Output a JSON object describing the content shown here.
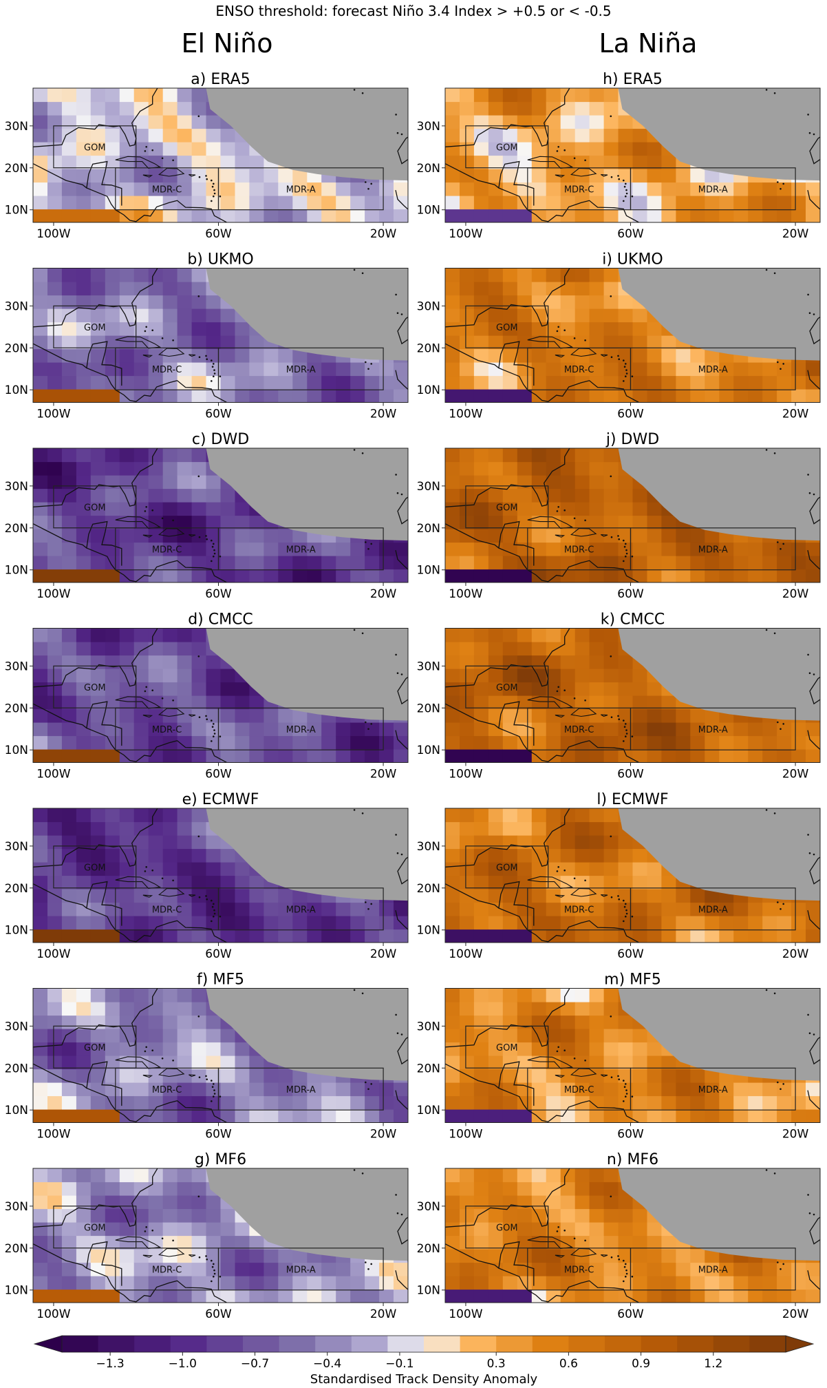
{
  "figure": {
    "suptitle": "ENSO threshold: forecast Niño 3.4 Index > +0.5 or < -0.5",
    "columns": [
      "El Niño",
      "La Niña"
    ]
  },
  "colors": {
    "land": "#a0a0a0",
    "box": "#222222",
    "coast": "#111111",
    "neutral": "#f7f7f7",
    "purple_deep": "#2d004b",
    "orange_deep": "#7f3b08"
  },
  "chart_data": {
    "type": "heatmap",
    "variable": "Standardised Track Density Anomaly",
    "map": {
      "lon_range": [
        -105,
        -14
      ],
      "lat_range": [
        7,
        39
      ],
      "x_ticks": [
        "100W",
        "60W",
        "20W"
      ],
      "x_tick_values": [
        -100,
        -60,
        -20
      ],
      "y_ticks": [
        "10N",
        "20N",
        "30N"
      ],
      "y_tick_values": [
        10,
        20,
        30
      ],
      "boxes": [
        {
          "label": "GOM",
          "lon": [
            -100,
            -80
          ],
          "lat": [
            20,
            30
          ]
        },
        {
          "label": "MDR-C",
          "lon": [
            -85,
            -60
          ],
          "lat": [
            10,
            20
          ]
        },
        {
          "label": "MDR-A",
          "lon": [
            -60,
            -20
          ],
          "lat": [
            10,
            20
          ]
        }
      ]
    },
    "colorbar": {
      "label": "Standardised Track Density Anomaly",
      "range": [
        -1.5,
        1.5
      ],
      "extend": "both",
      "tick_labels": [
        "−1.3",
        "−1.0",
        "−0.7",
        "−0.4",
        "−0.1",
        "0.3",
        "0.6",
        "0.9",
        "1.2"
      ],
      "tick_values": [
        -1.3,
        -1.0,
        -0.7,
        -0.4,
        -0.1,
        0.3,
        0.6,
        0.9,
        1.2
      ]
    },
    "panels": [
      {
        "title": "a) ERA5",
        "column": "El Niño",
        "mean_anomaly": -0.15
      },
      {
        "title": "b) UKMO",
        "column": "El Niño",
        "mean_anomaly": -0.5
      },
      {
        "title": "c) DWD",
        "column": "El Niño",
        "mean_anomaly": -0.85
      },
      {
        "title": "d) CMCC",
        "column": "El Niño",
        "mean_anomaly": -0.75
      },
      {
        "title": "e) ECMWF",
        "column": "El Niño",
        "mean_anomaly": -0.9
      },
      {
        "title": "f) MF5",
        "column": "El Niño",
        "mean_anomaly": -0.45
      },
      {
        "title": "g) MF6",
        "column": "El Niño",
        "mean_anomaly": -0.35
      },
      {
        "title": "h) ERA5",
        "column": "La Niña",
        "mean_anomaly": 0.3
      },
      {
        "title": "i) UKMO",
        "column": "La Niña",
        "mean_anomaly": 0.6
      },
      {
        "title": "j) DWD",
        "column": "La Niña",
        "mean_anomaly": 0.85
      },
      {
        "title": "k) CMCC",
        "column": "La Niña",
        "mean_anomaly": 0.85
      },
      {
        "title": "l) ECMWF",
        "column": "La Niña",
        "mean_anomaly": 0.7
      },
      {
        "title": "m) MF5",
        "column": "La Niña",
        "mean_anomaly": 0.5
      },
      {
        "title": "n) MF6",
        "column": "La Niña",
        "mean_anomaly": 0.55
      }
    ]
  }
}
